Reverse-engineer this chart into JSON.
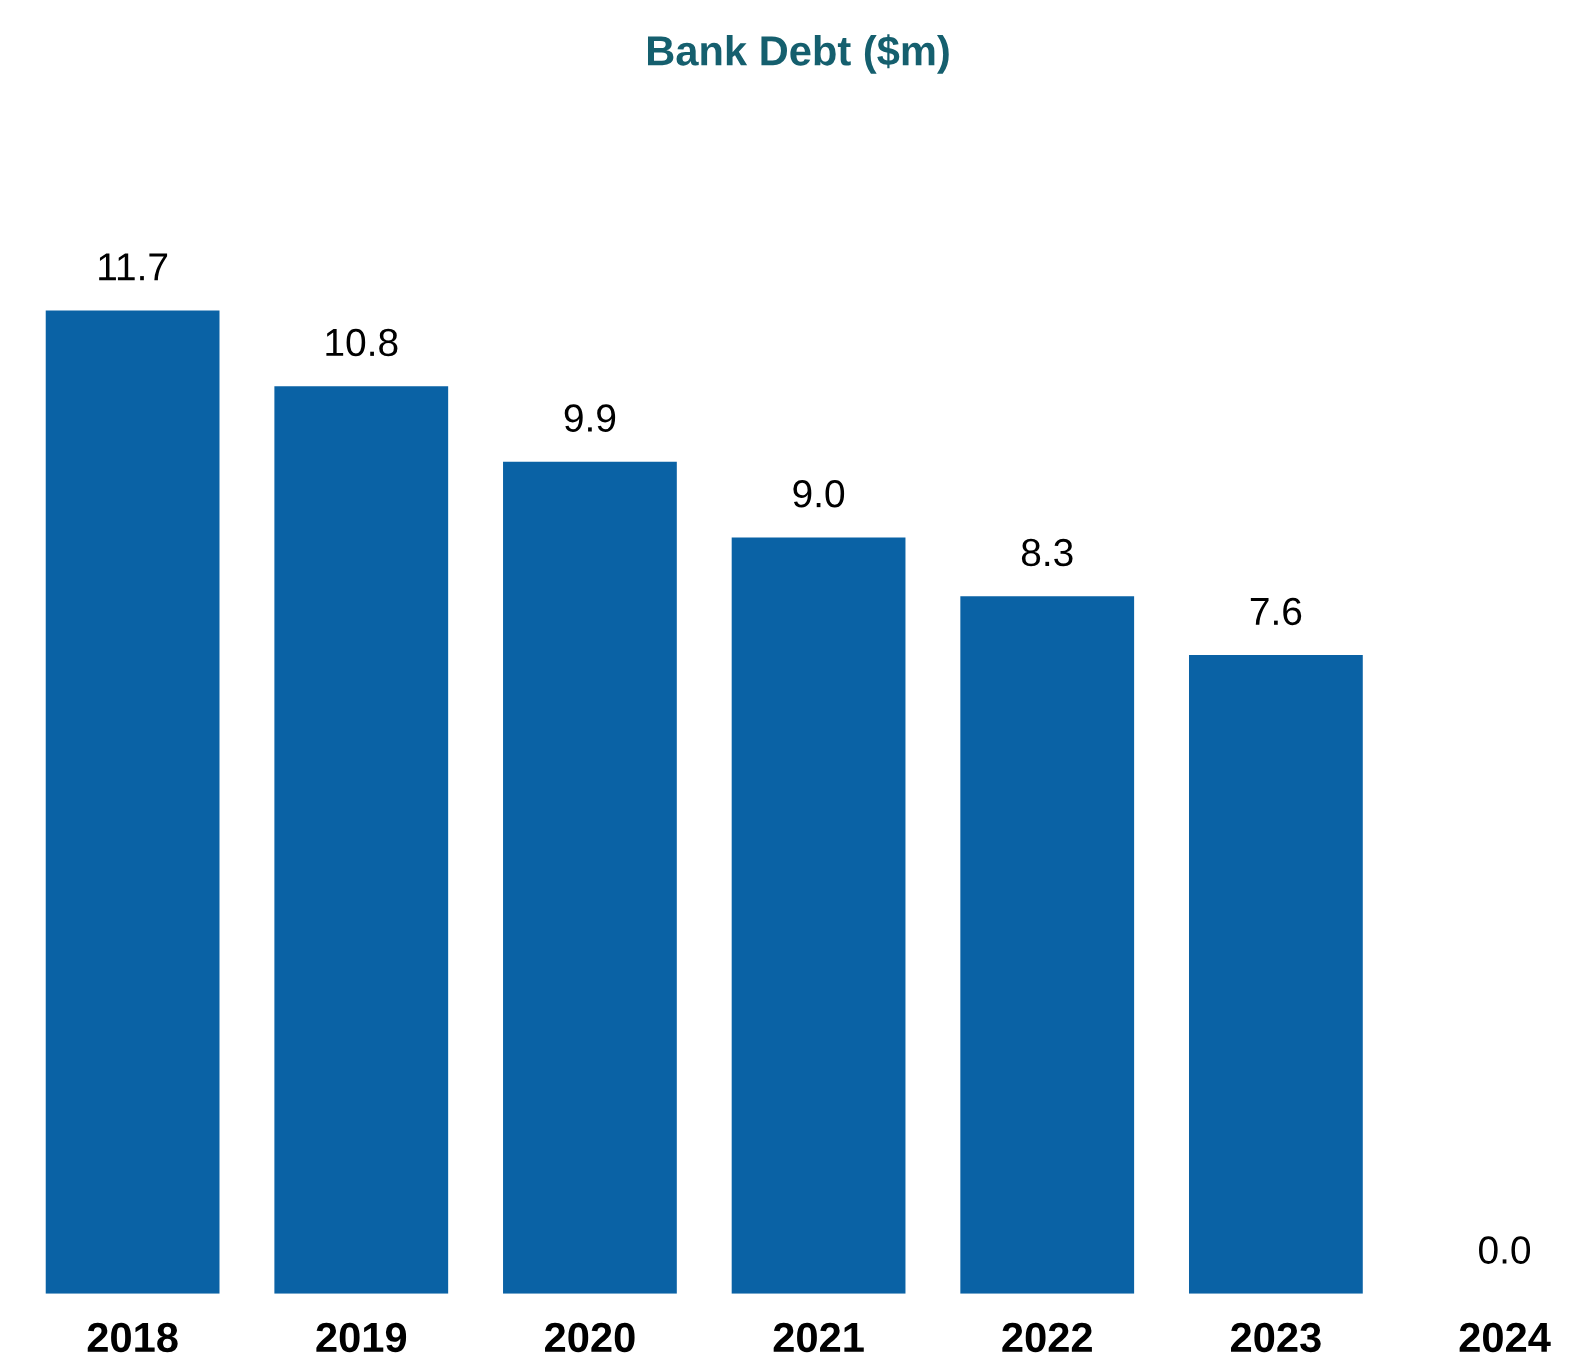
{
  "chart_data": {
    "type": "bar",
    "title": "Bank Debt ($m)",
    "categories": [
      "2018",
      "2019",
      "2020",
      "2021",
      "2022",
      "2023",
      "2024"
    ],
    "values": [
      11.7,
      10.8,
      9.9,
      9.0,
      8.3,
      7.6,
      0.0
    ],
    "value_labels": [
      "11.7",
      "10.8",
      "9.9",
      "9.0",
      "8.3",
      "7.6",
      "0.0"
    ],
    "color": "#0a62a5",
    "grid": false,
    "legend": false
  }
}
